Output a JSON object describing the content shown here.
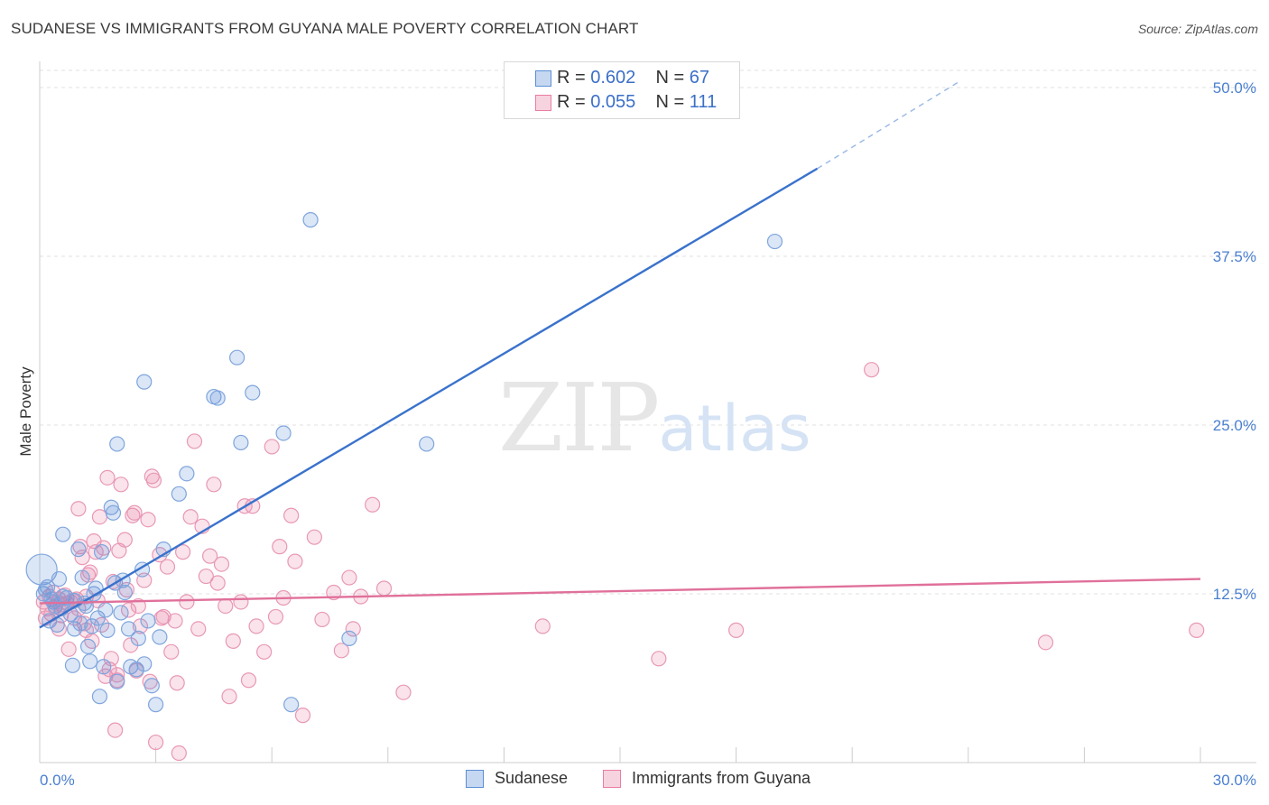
{
  "title": "SUDANESE VS IMMIGRANTS FROM GUYANA MALE POVERTY CORRELATION CHART",
  "source": "Source: ZipAtlas.com",
  "watermark": {
    "zip": "ZIP",
    "atlas": "atlas"
  },
  "legend": {
    "rows": [
      {
        "r_label": "R = ",
        "r_value": "0.602",
        "n_label": "N = ",
        "n_value": "67",
        "color": "#5b8fd6"
      },
      {
        "r_label": "R = ",
        "r_value": "0.055",
        "n_label": "N = ",
        "n_value": "111",
        "color": "#e87ea4"
      }
    ]
  },
  "bottom_legend": [
    {
      "label": "Sudanese",
      "color": "#5b8fd6"
    },
    {
      "label": "Immigrants from Guyana",
      "color": "#e87ea4"
    }
  ],
  "chart_data": {
    "type": "scatter",
    "ylabel": "Male Poverty",
    "xlim": [
      0,
      30
    ],
    "ylim": [
      0,
      50
    ],
    "x_tick_labels": [
      "0.0%",
      "30.0%"
    ],
    "y_ticks": [
      {
        "value": 12.5,
        "label": "12.5%"
      },
      {
        "value": 25.0,
        "label": "25.0%"
      },
      {
        "value": 37.5,
        "label": "37.5%"
      },
      {
        "value": 50.0,
        "label": "50.0%"
      }
    ],
    "grid": true,
    "series": [
      {
        "name": "Sudanese",
        "color": "#5b8fd6",
        "trend": {
          "x0": 0.0,
          "y0": 10.0,
          "x1": 20.1,
          "y1": 44.0,
          "dash_x1": 23.8,
          "dash_y1": 50.5
        },
        "points": [
          [
            0.05,
            14.3
          ],
          [
            0.1,
            12.5
          ],
          [
            0.2,
            13.0
          ],
          [
            0.3,
            12.1
          ],
          [
            0.35,
            11.9
          ],
          [
            0.4,
            11.6
          ],
          [
            0.5,
            13.6
          ],
          [
            0.6,
            12.3
          ],
          [
            0.6,
            16.9
          ],
          [
            0.7,
            12.2
          ],
          [
            0.8,
            11.0
          ],
          [
            0.85,
            7.2
          ],
          [
            0.9,
            9.9
          ],
          [
            0.9,
            12.0
          ],
          [
            1.0,
            15.8
          ],
          [
            1.1,
            13.7
          ],
          [
            1.2,
            11.6
          ],
          [
            1.25,
            8.6
          ],
          [
            1.3,
            7.5
          ],
          [
            1.35,
            10.1
          ],
          [
            1.4,
            12.5
          ],
          [
            1.5,
            10.7
          ],
          [
            1.55,
            4.9
          ],
          [
            1.6,
            15.6
          ],
          [
            1.65,
            7.1
          ],
          [
            1.7,
            11.3
          ],
          [
            1.75,
            9.8
          ],
          [
            1.85,
            18.9
          ],
          [
            1.9,
            18.5
          ],
          [
            1.95,
            13.3
          ],
          [
            2.0,
            6.0
          ],
          [
            2.1,
            11.1
          ],
          [
            2.15,
            13.5
          ],
          [
            2.2,
            12.6
          ],
          [
            2.3,
            9.9
          ],
          [
            2.35,
            7.1
          ],
          [
            2.5,
            6.9
          ],
          [
            2.55,
            9.2
          ],
          [
            2.65,
            14.3
          ],
          [
            2.7,
            7.3
          ],
          [
            2.8,
            10.5
          ],
          [
            2.9,
            5.7
          ],
          [
            3.0,
            4.3
          ],
          [
            3.1,
            9.3
          ],
          [
            3.2,
            15.8
          ],
          [
            3.6,
            19.9
          ],
          [
            3.8,
            21.4
          ],
          [
            2.0,
            23.6
          ],
          [
            2.7,
            28.2
          ],
          [
            4.5,
            27.1
          ],
          [
            4.6,
            27.0
          ],
          [
            5.1,
            30.0
          ],
          [
            5.2,
            23.7
          ],
          [
            5.5,
            27.4
          ],
          [
            6.3,
            24.4
          ],
          [
            6.5,
            4.3
          ],
          [
            7.0,
            40.2
          ],
          [
            8.0,
            9.2
          ],
          [
            10.0,
            23.6
          ],
          [
            19.0,
            38.6
          ],
          [
            0.15,
            12.8
          ],
          [
            0.25,
            10.5
          ],
          [
            0.45,
            10.2
          ],
          [
            0.55,
            11.4
          ],
          [
            1.05,
            10.3
          ],
          [
            1.45,
            12.9
          ],
          [
            1.15,
            11.8
          ]
        ],
        "big_point": [
          0.05,
          14.3
        ]
      },
      {
        "name": "Immigrants from Guyana",
        "color": "#e87ea4",
        "trend": {
          "x0": 0.0,
          "y0": 11.8,
          "x1": 30.0,
          "y1": 13.6
        },
        "points": [
          [
            0.1,
            11.9
          ],
          [
            0.2,
            11.4
          ],
          [
            0.25,
            12.3
          ],
          [
            0.3,
            11.0
          ],
          [
            0.35,
            12.6
          ],
          [
            0.4,
            11.5
          ],
          [
            0.45,
            11.9
          ],
          [
            0.5,
            12.1
          ],
          [
            0.55,
            10.9
          ],
          [
            0.6,
            11.7
          ],
          [
            0.65,
            12.4
          ],
          [
            0.7,
            11.8
          ],
          [
            0.75,
            8.4
          ],
          [
            0.8,
            11.9
          ],
          [
            0.85,
            12.0
          ],
          [
            0.9,
            10.7
          ],
          [
            0.95,
            12.1
          ],
          [
            1.0,
            11.4
          ],
          [
            1.0,
            18.8
          ],
          [
            1.05,
            16.0
          ],
          [
            1.1,
            15.2
          ],
          [
            1.15,
            10.3
          ],
          [
            1.2,
            12.3
          ],
          [
            1.25,
            13.9
          ],
          [
            1.3,
            14.1
          ],
          [
            1.35,
            9.0
          ],
          [
            1.4,
            16.4
          ],
          [
            1.45,
            15.6
          ],
          [
            1.5,
            12.0
          ],
          [
            1.55,
            18.2
          ],
          [
            1.6,
            10.2
          ],
          [
            1.65,
            15.9
          ],
          [
            1.7,
            6.4
          ],
          [
            1.75,
            21.1
          ],
          [
            1.8,
            6.9
          ],
          [
            1.85,
            7.7
          ],
          [
            1.9,
            13.4
          ],
          [
            1.95,
            2.4
          ],
          [
            2.0,
            6.1
          ],
          [
            2.05,
            15.7
          ],
          [
            2.1,
            20.6
          ],
          [
            2.2,
            16.5
          ],
          [
            2.25,
            12.8
          ],
          [
            2.3,
            11.3
          ],
          [
            2.35,
            8.7
          ],
          [
            2.4,
            18.3
          ],
          [
            2.45,
            18.5
          ],
          [
            2.5,
            6.8
          ],
          [
            2.55,
            11.6
          ],
          [
            2.6,
            10.1
          ],
          [
            2.7,
            13.5
          ],
          [
            2.8,
            18.0
          ],
          [
            2.85,
            6.0
          ],
          [
            2.9,
            21.2
          ],
          [
            2.95,
            20.9
          ],
          [
            3.0,
            1.5
          ],
          [
            3.1,
            15.4
          ],
          [
            3.15,
            10.7
          ],
          [
            3.2,
            10.8
          ],
          [
            3.3,
            14.5
          ],
          [
            3.4,
            8.2
          ],
          [
            3.5,
            10.5
          ],
          [
            3.55,
            5.9
          ],
          [
            3.6,
            0.7
          ],
          [
            3.7,
            15.6
          ],
          [
            3.8,
            11.9
          ],
          [
            3.9,
            18.2
          ],
          [
            4.0,
            23.8
          ],
          [
            4.1,
            9.9
          ],
          [
            4.2,
            17.5
          ],
          [
            4.3,
            13.8
          ],
          [
            4.4,
            15.3
          ],
          [
            4.5,
            20.6
          ],
          [
            4.6,
            13.3
          ],
          [
            4.7,
            14.7
          ],
          [
            4.8,
            11.6
          ],
          [
            4.9,
            4.9
          ],
          [
            5.0,
            9.0
          ],
          [
            5.2,
            11.9
          ],
          [
            5.4,
            6.1
          ],
          [
            5.5,
            19.0
          ],
          [
            5.6,
            10.1
          ],
          [
            5.8,
            8.2
          ],
          [
            6.0,
            23.4
          ],
          [
            6.1,
            10.8
          ],
          [
            6.2,
            16.0
          ],
          [
            6.3,
            12.2
          ],
          [
            6.5,
            18.3
          ],
          [
            6.6,
            14.9
          ],
          [
            6.8,
            3.5
          ],
          [
            7.1,
            16.7
          ],
          [
            7.3,
            10.6
          ],
          [
            7.6,
            12.6
          ],
          [
            7.8,
            8.3
          ],
          [
            8.0,
            13.7
          ],
          [
            8.1,
            9.9
          ],
          [
            8.3,
            12.3
          ],
          [
            8.6,
            19.1
          ],
          [
            8.9,
            12.9
          ],
          [
            9.4,
            5.2
          ],
          [
            13.0,
            10.1
          ],
          [
            16.0,
            7.7
          ],
          [
            18.0,
            9.8
          ],
          [
            21.5,
            29.1
          ],
          [
            26.0,
            8.9
          ],
          [
            29.9,
            9.8
          ],
          [
            0.15,
            10.7
          ],
          [
            0.5,
            9.9
          ],
          [
            1.2,
            9.8
          ],
          [
            2.0,
            6.5
          ],
          [
            5.3,
            19.0
          ]
        ]
      }
    ]
  }
}
